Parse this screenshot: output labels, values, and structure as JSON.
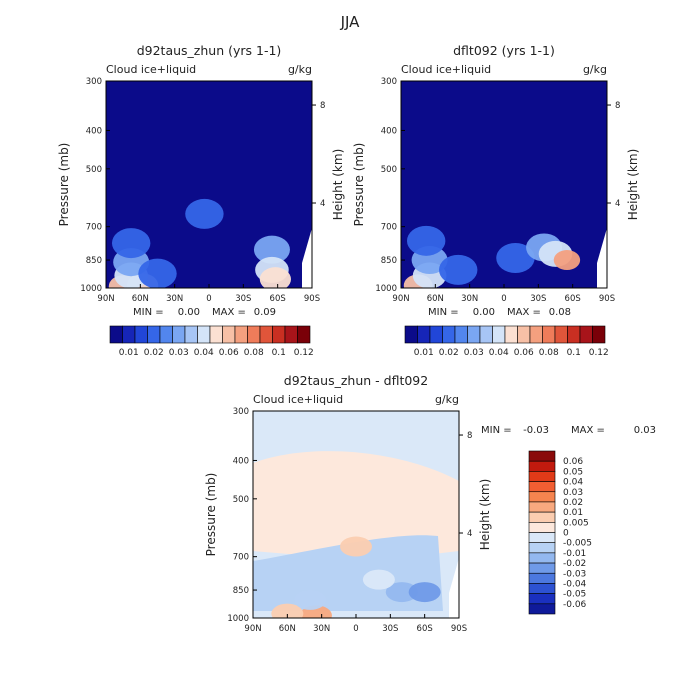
{
  "chart_data": {
    "type": "heatmap",
    "title": "JJA",
    "panels": [
      {
        "id": "left",
        "title": "d92taus_zhun (yrs 1-1)",
        "subtitle_left": "Cloud ice+liquid",
        "subtitle_right": "g/kg",
        "xlabel": "",
        "ylabel": "Pressure (mb)",
        "ylabel_right": "Height (km)",
        "x_ticks": [
          "90N",
          "60N",
          "30N",
          "0",
          "30S",
          "60S",
          "90S"
        ],
        "y_ticks": [
          "300",
          "400",
          "500",
          "700",
          "850",
          "1000"
        ],
        "y_right_ticks": [
          "8",
          "4"
        ],
        "xlim": [
          90,
          -90
        ],
        "ylim": [
          1000,
          300
        ],
        "min_label": "MIN =",
        "min_value": "0.00",
        "max_label": "MAX =",
        "max_value": "0.09",
        "features": [
          {
            "lat": 75,
            "p": 990,
            "value": 0.06
          },
          {
            "lat": 58,
            "p": 985,
            "value": 0.05
          },
          {
            "lat": 68,
            "p": 930,
            "value": 0.04
          },
          {
            "lat": 68,
            "p": 860,
            "value": 0.03
          },
          {
            "lat": 68,
            "p": 770,
            "value": 0.02
          },
          {
            "lat": 45,
            "p": 920,
            "value": 0.02
          },
          {
            "lat": 4,
            "p": 650,
            "value": 0.02
          },
          {
            "lat": -55,
            "p": 800,
            "value": 0.03
          },
          {
            "lat": -55,
            "p": 900,
            "value": 0.04
          },
          {
            "lat": -58,
            "p": 950,
            "value": 0.05
          }
        ]
      },
      {
        "id": "right",
        "title": "dflt092 (yrs 1-1)",
        "subtitle_left": "Cloud ice+liquid",
        "subtitle_right": "g/kg",
        "xlabel": "",
        "ylabel": "Pressure (mb)",
        "ylabel_right": "Height (km)",
        "x_ticks": [
          "90N",
          "60N",
          "30N",
          "0",
          "30S",
          "60S",
          "90S"
        ],
        "y_ticks": [
          "300",
          "400",
          "500",
          "700",
          "850",
          "1000"
        ],
        "y_right_ticks": [
          "8",
          "4"
        ],
        "xlim": [
          90,
          -90
        ],
        "ylim": [
          1000,
          300
        ],
        "min_label": "MIN =",
        "min_value": "0.00",
        "max_label": "MAX =",
        "max_value": "0.08",
        "features": [
          {
            "lat": 75,
            "p": 985,
            "value": 0.06
          },
          {
            "lat": 65,
            "p": 930,
            "value": 0.04
          },
          {
            "lat": 65,
            "p": 850,
            "value": 0.03
          },
          {
            "lat": 68,
            "p": 760,
            "value": 0.02
          },
          {
            "lat": 40,
            "p": 900,
            "value": 0.02
          },
          {
            "lat": -10,
            "p": 840,
            "value": 0.02
          },
          {
            "lat": -35,
            "p": 790,
            "value": 0.03
          },
          {
            "lat": -45,
            "p": 820,
            "value": 0.04
          },
          {
            "lat": -55,
            "p": 850,
            "value": 0.07
          }
        ]
      },
      {
        "id": "diff",
        "title": "d92taus_zhun - dflt092",
        "subtitle_left": "Cloud ice+liquid",
        "subtitle_right": "g/kg",
        "xlabel": "",
        "ylabel": "Pressure (mb)",
        "ylabel_right": "Height (km)",
        "x_ticks": [
          "90N",
          "60N",
          "30N",
          "0",
          "30S",
          "60S",
          "90S"
        ],
        "y_ticks": [
          "300",
          "400",
          "500",
          "700",
          "850",
          "1000"
        ],
        "y_right_ticks": [
          "8",
          "4"
        ],
        "xlim": [
          90,
          -90
        ],
        "ylim": [
          1000,
          300
        ],
        "min_label": "MIN =",
        "min_value": "-0.03",
        "max_label": "MAX =",
        "max_value": "0.03",
        "features": [
          {
            "lat": 0,
            "p": 660,
            "value": 0.005
          },
          {
            "lat": 35,
            "p": 985,
            "value": 0.01
          },
          {
            "lat": 60,
            "p": 975,
            "value": 0.005
          },
          {
            "lat": -40,
            "p": 860,
            "value": -0.02
          },
          {
            "lat": -60,
            "p": 860,
            "value": -0.03
          },
          {
            "lat": 40,
            "p": 900,
            "value": -0.01
          },
          {
            "lat": -20,
            "p": 800,
            "value": -0.005
          }
        ]
      }
    ],
    "colorbar_sequential": {
      "labels": [
        "0.01",
        "0.02",
        "0.03",
        "0.04",
        "0.06",
        "0.08",
        "0.1",
        "0.12"
      ],
      "colors": [
        "#0b0b8a",
        "#1625b8",
        "#2146d8",
        "#3566e8",
        "#5286ee",
        "#7aa6f2",
        "#a7c5f5",
        "#d4e4f8",
        "#fbe0d2",
        "#f7c0a6",
        "#f4a07f",
        "#ef7c5a",
        "#e0553a",
        "#c92f22",
        "#a8141a",
        "#7a0008"
      ]
    },
    "colorbar_diverging": {
      "labels": [
        "0.06",
        "0.05",
        "0.04",
        "0.03",
        "0.02",
        "0.01",
        "0.005",
        "0",
        "-0.005",
        "-0.01",
        "-0.02",
        "-0.03",
        "-0.04",
        "-0.05",
        "-0.06"
      ],
      "colors": [
        "#8a0a0a",
        "#c21a0e",
        "#e03a18",
        "#f25e32",
        "#f6844f",
        "#f8a97f",
        "#fbcdb0",
        "#fde8dc",
        "#dae8f8",
        "#b7d2f4",
        "#93b8ef",
        "#6f9ae8",
        "#4c78df",
        "#2d52d2",
        "#1a30bf",
        "#0f1a9a"
      ]
    }
  }
}
